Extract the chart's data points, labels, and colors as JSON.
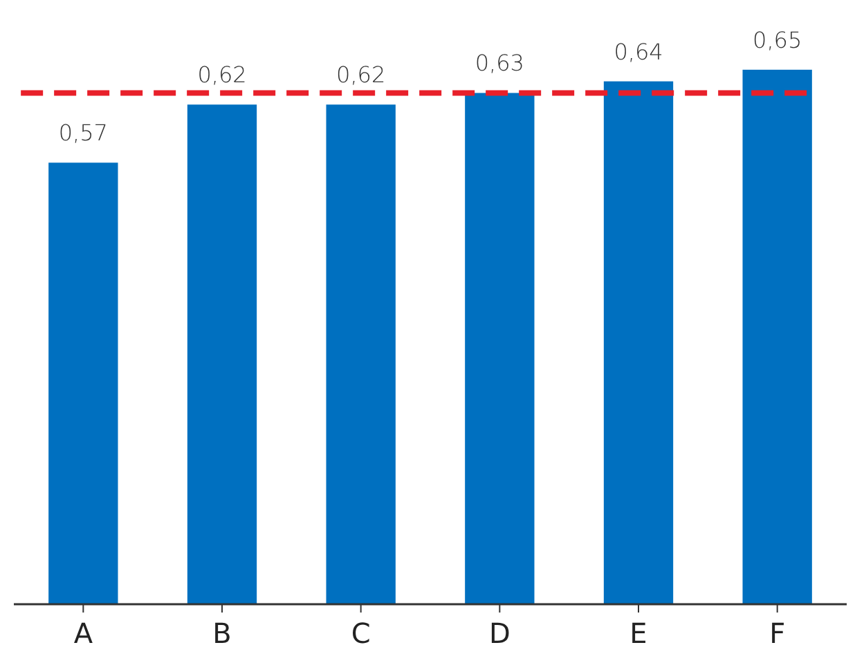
{
  "chart_data": {
    "type": "bar",
    "categories": [
      "A",
      "B",
      "C",
      "D",
      "E",
      "F"
    ],
    "values": [
      0.57,
      0.62,
      0.62,
      0.63,
      0.64,
      0.65
    ],
    "value_labels": [
      "0,57",
      "0,62",
      "0,62",
      "0,63",
      "0,64",
      "0,65"
    ],
    "color": "#0070c0",
    "ylim": [
      0.19,
      0.71
    ],
    "tick_labels": "x",
    "ref_lines": [
      {
        "axis": "y",
        "value": 0.63,
        "color": "#e8202a",
        "line_style": "dashed"
      }
    ]
  }
}
